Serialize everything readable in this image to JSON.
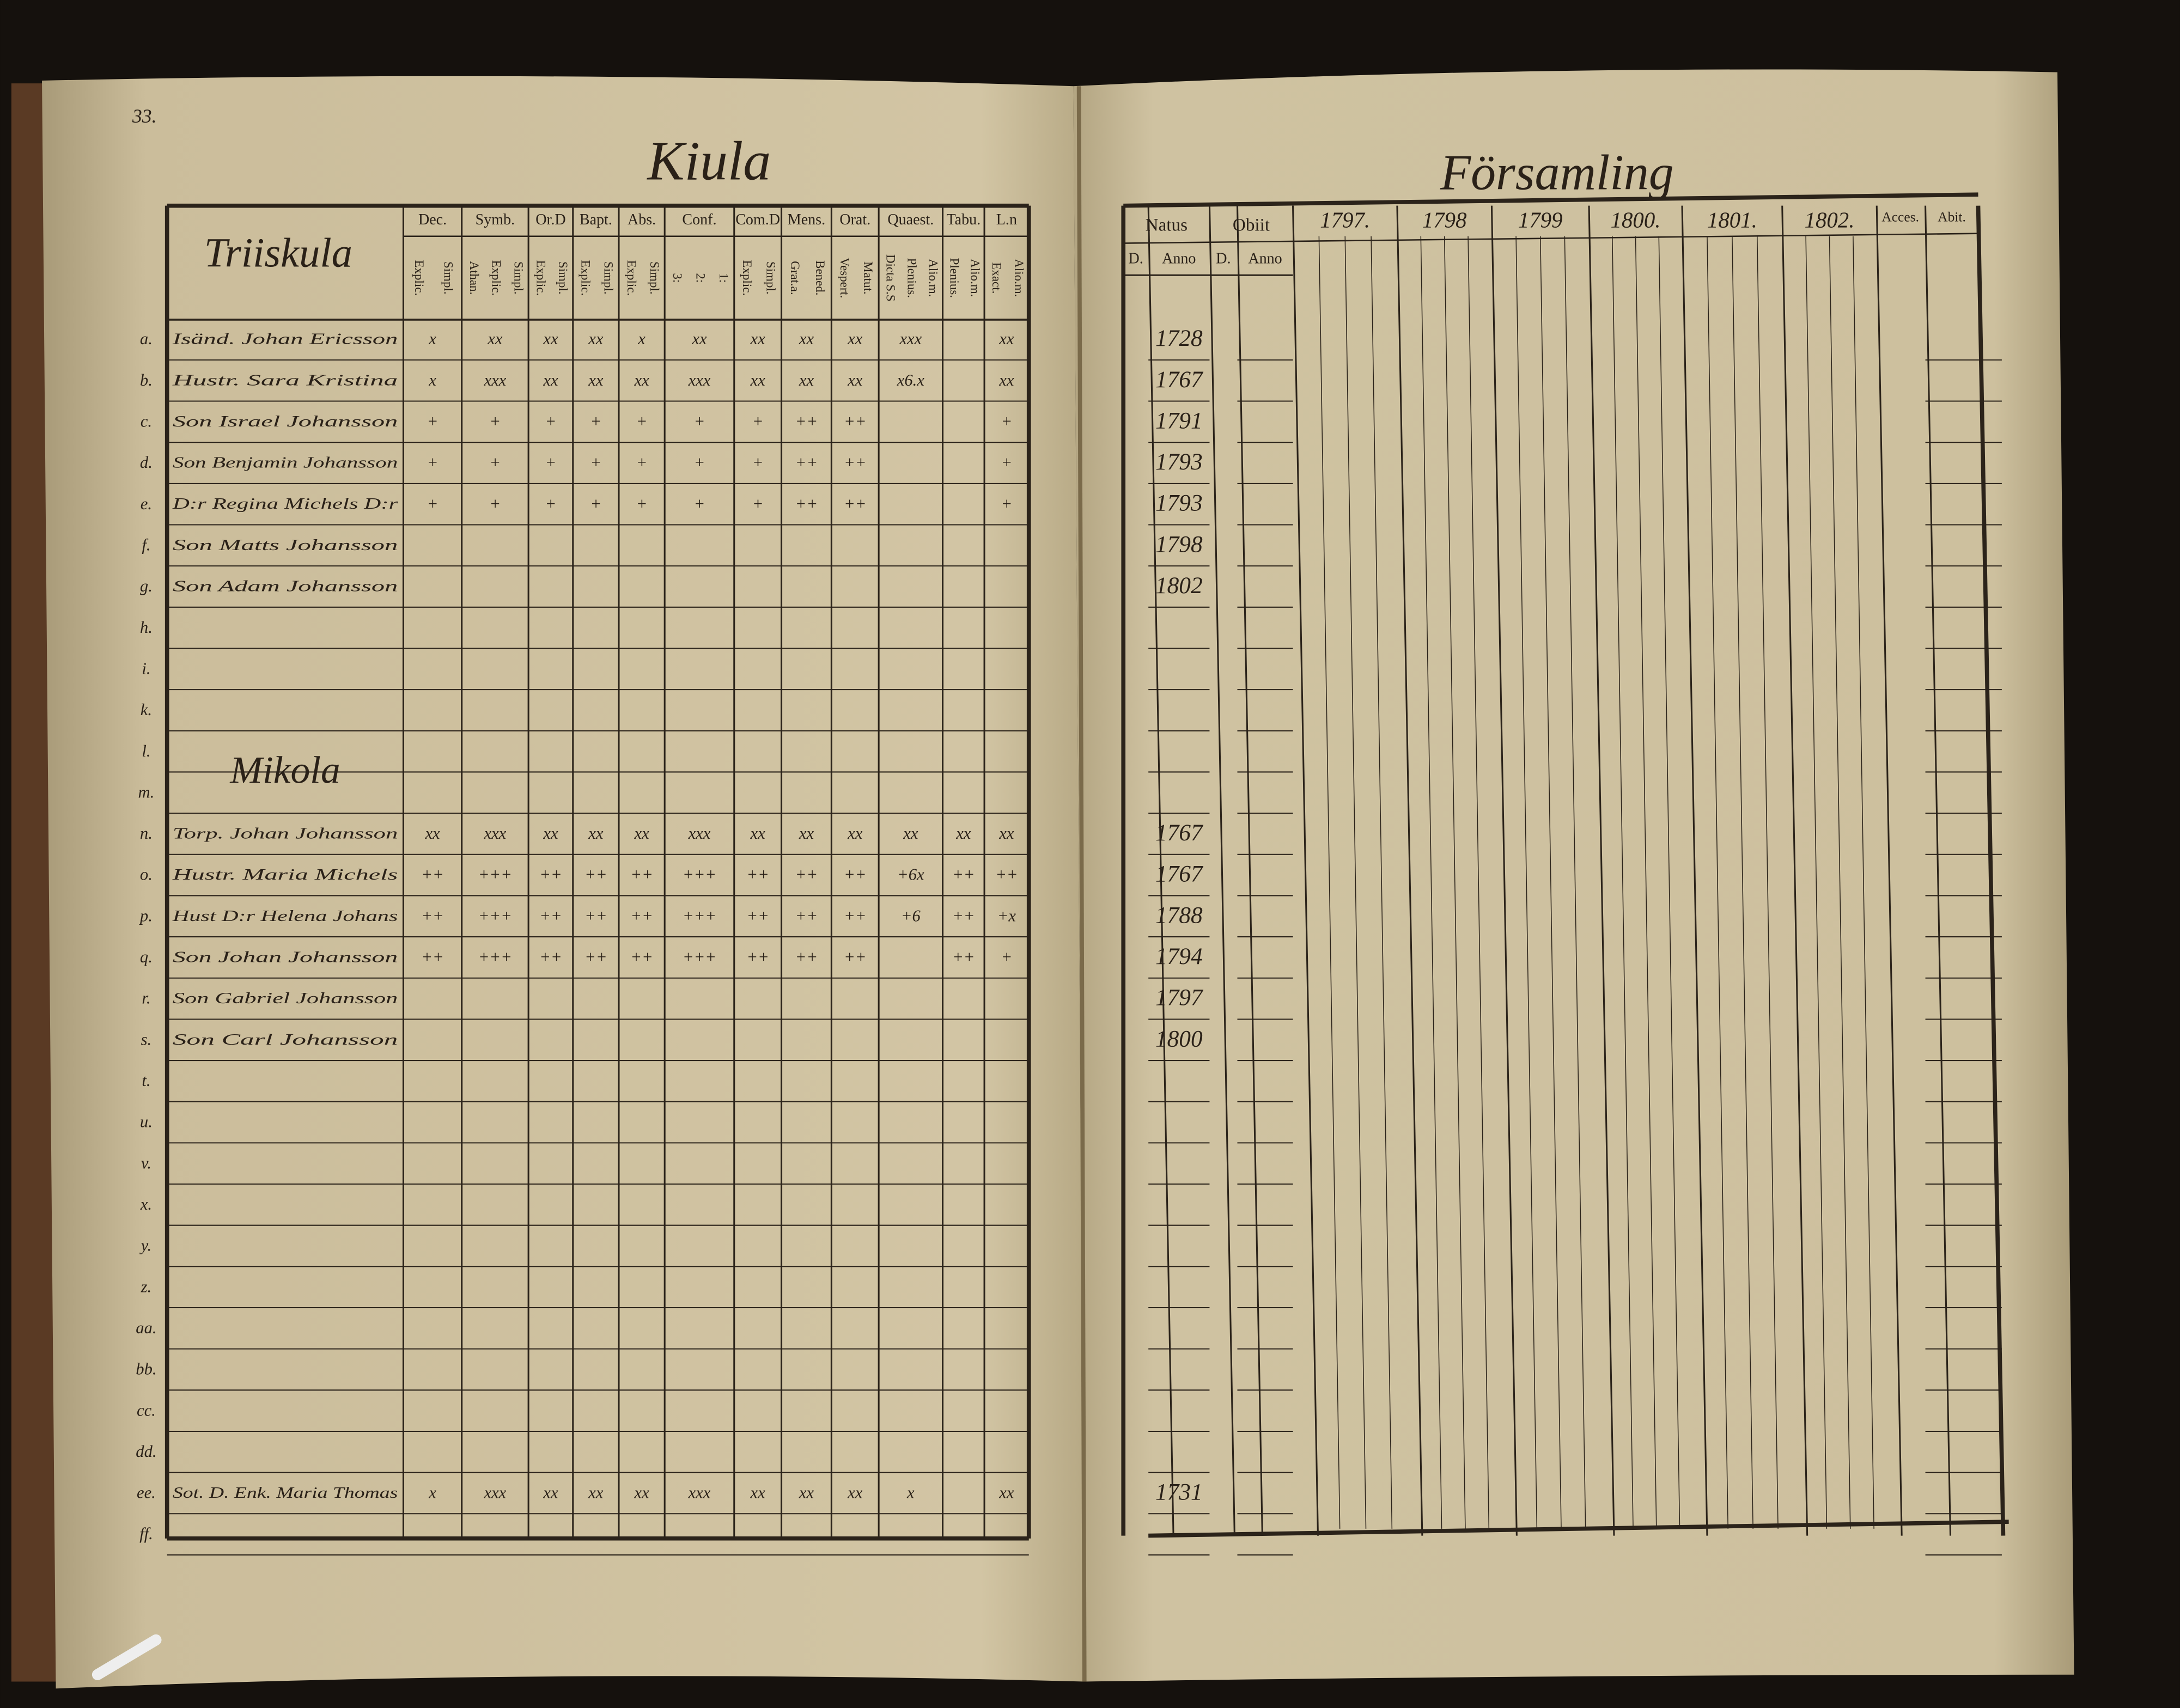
{
  "left_page": {
    "page_number": "33.",
    "title": "Kiula",
    "sections": [
      "Triiskula",
      "Mikola"
    ],
    "columns": [
      {
        "head": "Dec.",
        "sub": [
          "Explic.",
          "Simpl."
        ]
      },
      {
        "head": "Symb.",
        "sub": [
          "Athan.",
          "Explic.",
          "Simpl."
        ]
      },
      {
        "head": "Or.D",
        "sub": [
          "Explic.",
          "Simpl."
        ]
      },
      {
        "head": "Bapt.",
        "sub": [
          "Explic.",
          "Simpl."
        ]
      },
      {
        "head": "Abs.",
        "sub": [
          "Explic.",
          "Simpl."
        ]
      },
      {
        "head": "Conf.",
        "sub": [
          "3:",
          "2:",
          "1:"
        ]
      },
      {
        "head": "Com.D",
        "sub": [
          "Explic.",
          "Simpl."
        ]
      },
      {
        "head": "Mens.",
        "sub": [
          "Grat.a.",
          "Bened."
        ]
      },
      {
        "head": "Orat.",
        "sub": [
          "Vespert.",
          "Matut."
        ]
      },
      {
        "head": "Quaest.",
        "sub": [
          "Dicta S.S",
          "Plenius.",
          "Alio.m."
        ]
      },
      {
        "head": "Tabu.",
        "sub": [
          "Plenius.",
          "Alio.m."
        ]
      },
      {
        "head": "L.n",
        "sub": [
          "Exact.",
          "Alio.m."
        ]
      }
    ],
    "rows": [
      {
        "letter": "a.",
        "name": "Isänd. Johan Ericsson",
        "marks": [
          "x",
          "xx",
          "xx",
          "xx",
          "x",
          "xx",
          "xx",
          "xx",
          "xx",
          "xxx",
          null,
          "xx"
        ]
      },
      {
        "letter": "b.",
        "name": "Hustr. Sara Kristina",
        "marks": [
          "x",
          "xxx",
          "xx",
          "xx",
          "xx",
          "xxx",
          "xx",
          "xx",
          "xx",
          "x6.x",
          null,
          "xx"
        ]
      },
      {
        "letter": "c.",
        "name": "Son Israel Johansson",
        "marks": [
          "+",
          "+",
          "+",
          "+",
          "+",
          "+",
          "+",
          "++",
          "++",
          null,
          null,
          "+"
        ]
      },
      {
        "letter": "d.",
        "name": "Son Benjamin Johansson",
        "marks": [
          "+",
          "+",
          "+",
          "+",
          "+",
          "+",
          "+",
          "++",
          "++",
          null,
          null,
          "+"
        ]
      },
      {
        "letter": "e.",
        "name": "D:r Regina Michels D:r",
        "marks": [
          "+",
          "+",
          "+",
          "+",
          "+",
          "+",
          "+",
          "++",
          "++",
          null,
          null,
          "+"
        ]
      },
      {
        "letter": "f.",
        "name": "Son Matts Johansson"
      },
      {
        "letter": "g.",
        "name": "Son Adam Johansson"
      },
      {
        "letter": "h."
      },
      {
        "letter": "i."
      },
      {
        "letter": "k."
      },
      {
        "letter": "l."
      },
      {
        "letter": "m."
      },
      {
        "letter": "n.",
        "name": "Torp. Johan Johansson",
        "marks": [
          "xx",
          "xxx",
          "xx",
          "xx",
          "xx",
          "xxx",
          "xx",
          "xx",
          "xx",
          "xx",
          "xx",
          "xx"
        ]
      },
      {
        "letter": "o.",
        "name": "Hustr. Maria Michels",
        "marks": [
          "++",
          "+++",
          "++",
          "++",
          "++",
          "+++",
          "++",
          "++",
          "++",
          "+6x",
          "++",
          "++"
        ]
      },
      {
        "letter": "p.",
        "name": "Hust D:r Helena Johans",
        "marks": [
          "++",
          "+++",
          "++",
          "++",
          "++",
          "+++",
          "++",
          "++",
          "++",
          "+6",
          "++",
          "+x"
        ]
      },
      {
        "letter": "q.",
        "name": "Son Johan Johansson",
        "marks": [
          "++",
          "+++",
          "++",
          "++",
          "++",
          "+++",
          "++",
          "++",
          "++",
          null,
          "++",
          "+"
        ]
      },
      {
        "letter": "r.",
        "name": "Son Gabriel Johansson"
      },
      {
        "letter": "s.",
        "name": "Son Carl Johansson"
      },
      {
        "letter": "t."
      },
      {
        "letter": "u."
      },
      {
        "letter": "v."
      },
      {
        "letter": "x."
      },
      {
        "letter": "y."
      },
      {
        "letter": "z."
      },
      {
        "letter": "aa."
      },
      {
        "letter": "bb."
      },
      {
        "letter": "cc."
      },
      {
        "letter": "dd."
      },
      {
        "letter": "ee.",
        "name": "Sot. D. Enk. Maria Thomas",
        "marks": [
          "x",
          "xxx",
          "xx",
          "xx",
          "xx",
          "xxx",
          "xx",
          "xx",
          "xx",
          "x",
          null,
          "xx"
        ]
      },
      {
        "letter": "ff."
      }
    ]
  },
  "right_page": {
    "title": "Församling",
    "natus": "Natus",
    "obiit": "Obiit",
    "day": "D.",
    "anno": "Anno",
    "years": [
      "1797.",
      "1798",
      "1799",
      "1800.",
      "1801.",
      "1802."
    ],
    "accessit": "Acces.",
    "abiit": "Abit.",
    "birth_years": [
      "1728",
      "1767",
      "1791",
      "1793",
      "1793",
      "1798",
      "1802",
      null,
      null,
      null,
      null,
      null,
      "1767",
      "1767",
      "1788",
      "1794",
      "1797",
      "1800",
      null,
      null,
      null,
      null,
      null,
      null,
      null,
      null,
      null,
      null,
      "1731",
      null
    ]
  }
}
